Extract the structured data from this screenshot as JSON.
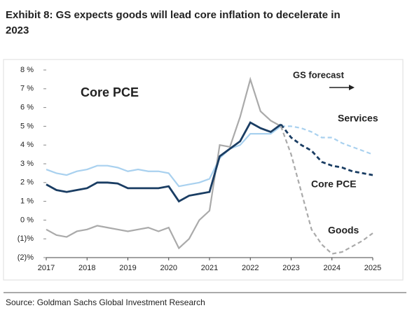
{
  "chart_data": {
    "type": "line",
    "title": "Exhibit 8: GS expects goods will lead core inflation to decelerate in 2023",
    "annotations": [
      "Core PCE",
      "GS forecast"
    ],
    "source": "Source: Goldman Sachs Global Investment Research",
    "xlim": [
      2017,
      2025
    ],
    "xticks": [
      2017,
      2018,
      2019,
      2020,
      2021,
      2022,
      2023,
      2024,
      2025
    ],
    "ylim": [
      -2,
      8
    ],
    "yticks": [
      {
        "value": 8,
        "label": "8 %"
      },
      {
        "value": 7,
        "label": "7 %"
      },
      {
        "value": 6,
        "label": "6 %"
      },
      {
        "value": 5,
        "label": "5 %"
      },
      {
        "value": 4,
        "label": "4 %"
      },
      {
        "value": 3,
        "label": "3 %"
      },
      {
        "value": 2,
        "label": "2 %"
      },
      {
        "value": 1,
        "label": "1 %"
      },
      {
        "value": 0,
        "label": "0 %"
      },
      {
        "value": -1,
        "label": "(1)%"
      },
      {
        "value": -2,
        "label": "(2)%"
      }
    ],
    "series": [
      {
        "color": "#a9d1ef",
        "dashed": false,
        "x": [
          2017,
          2017.25,
          2017.5,
          2017.75,
          2018,
          2018.25,
          2018.5,
          2018.75,
          2019,
          2019.25,
          2019.5,
          2019.75,
          2020,
          2020.25,
          2020.5,
          2020.75,
          2021,
          2021.25,
          2021.5,
          2021.75,
          2022,
          2022.25,
          2022.5,
          2022.75
        ],
        "values": [
          2.7,
          2.5,
          2.4,
          2.6,
          2.7,
          2.9,
          2.9,
          2.8,
          2.6,
          2.7,
          2.6,
          2.6,
          2.5,
          1.8,
          1.9,
          2.0,
          2.2,
          3.3,
          3.8,
          4.0,
          4.6,
          4.6,
          4.6,
          5.0
        ]
      },
      {
        "color": "#aaaaaa",
        "dashed": false,
        "x": [
          2017,
          2017.25,
          2017.5,
          2017.75,
          2018,
          2018.25,
          2018.5,
          2018.75,
          2019,
          2019.25,
          2019.5,
          2019.75,
          2020,
          2020.25,
          2020.5,
          2020.75,
          2021,
          2021.25,
          2021.5,
          2021.75,
          2022,
          2022.25,
          2022.5,
          2022.75
        ],
        "values": [
          -0.5,
          -0.8,
          -0.9,
          -0.6,
          -0.5,
          -0.3,
          -0.4,
          -0.5,
          -0.6,
          -0.5,
          -0.4,
          -0.6,
          -0.4,
          -1.5,
          -1.0,
          0.0,
          0.5,
          4.0,
          3.9,
          5.5,
          7.5,
          5.8,
          5.3,
          5.0
        ]
      },
      {
        "color": "#1a3d63",
        "dashed": false,
        "x": [
          2017,
          2017.25,
          2017.5,
          2017.75,
          2018,
          2018.25,
          2018.5,
          2018.75,
          2019,
          2019.25,
          2019.5,
          2019.75,
          2020,
          2020.25,
          2020.5,
          2020.75,
          2021,
          2021.25,
          2021.5,
          2021.75,
          2022,
          2022.25,
          2022.5,
          2022.75
        ],
        "values": [
          1.9,
          1.6,
          1.5,
          1.6,
          1.7,
          2.0,
          2.0,
          1.95,
          1.7,
          1.7,
          1.7,
          1.7,
          1.8,
          1.0,
          1.3,
          1.4,
          1.5,
          3.4,
          3.8,
          4.2,
          5.2,
          4.9,
          4.7,
          5.1
        ]
      },
      {
        "name": "Services",
        "color": "#a9d1ef",
        "dashed": true,
        "x": [
          2022.75,
          2023,
          2023.25,
          2023.5,
          2023.75,
          2024,
          2024.25,
          2024.5,
          2024.75,
          2025
        ],
        "values": [
          5.0,
          5.0,
          4.9,
          4.7,
          4.4,
          4.4,
          4.1,
          3.9,
          3.7,
          3.5
        ]
      },
      {
        "name": "Core PCE",
        "color": "#1a3d63",
        "dashed": true,
        "x": [
          2022.75,
          2023,
          2023.25,
          2023.5,
          2023.75,
          2024,
          2024.25,
          2024.5,
          2024.75,
          2025
        ],
        "values": [
          5.1,
          4.4,
          4.0,
          3.7,
          3.1,
          2.9,
          2.8,
          2.6,
          2.5,
          2.4
        ]
      },
      {
        "name": "Goods",
        "color": "#aaaaaa",
        "dashed": true,
        "x": [
          2022.75,
          2023,
          2023.25,
          2023.5,
          2023.75,
          2024,
          2024.25,
          2024.5,
          2024.75,
          2025
        ],
        "values": [
          5.0,
          3.5,
          1.5,
          -0.5,
          -1.3,
          -1.8,
          -1.7,
          -1.4,
          -1.1,
          -0.7
        ]
      }
    ]
  }
}
